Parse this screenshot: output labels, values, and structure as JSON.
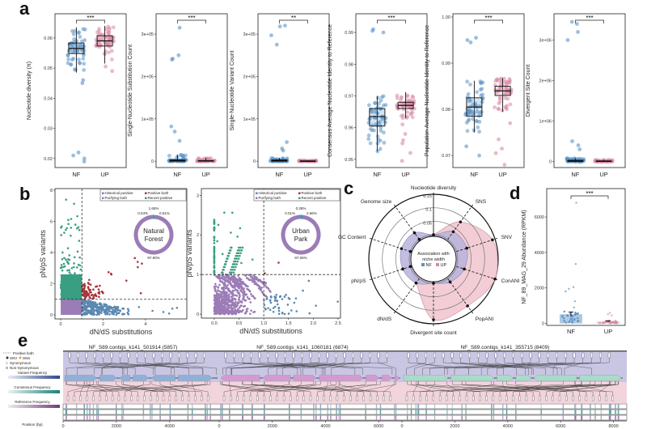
{
  "panel_labels": {
    "a": "a",
    "b": "b",
    "c": "c",
    "d": "d",
    "e": "e"
  },
  "colors": {
    "NF": "#5b93c4",
    "UP": "#d98aa6",
    "historical_positive": "#5b88b0",
    "positive_both": "#a8343a",
    "purifying_both": "#9b7cb6",
    "recent_positive": "#3a9e82",
    "radar_NF_fill": "#b7b3da",
    "radar_UP_fill": "#f2cdd6",
    "contig1": "#8fb0d8",
    "contig2": "#d49ad0",
    "contig3": "#a8dcc8"
  },
  "chart_data": [
    {
      "panel": "a",
      "type": "box",
      "ylabel": "Nucleotide diversity (π)",
      "categories": [
        "NF",
        "UP"
      ],
      "significance": "***",
      "ylim": [
        0.017,
        0.068
      ],
      "yticks": [
        {
          "v": 0.02,
          "label": "0.02"
        },
        {
          "v": 0.03,
          "label": "0.03"
        },
        {
          "v": 0.04,
          "label": "0.04"
        },
        {
          "v": 0.05,
          "label": "0.05"
        },
        {
          "v": 0.06,
          "label": "0.06"
        }
      ],
      "series": [
        {
          "category": "NF",
          "q1": 0.0548,
          "median": 0.0565,
          "q3": 0.0583,
          "whisker_low": 0.0485,
          "whisker_high": 0.0635,
          "outliers": [
            0.021,
            0.019,
            0.02,
            0.022,
            0.045,
            0.046
          ]
        },
        {
          "category": "UP",
          "q1": 0.0573,
          "median": 0.059,
          "q3": 0.0607,
          "whisker_low": 0.0515,
          "whisker_high": 0.064,
          "outliers": [
            0.049,
            0.0505
          ]
        }
      ]
    },
    {
      "panel": "a",
      "type": "box",
      "ylabel": "Single-Nucleotide Substitution Count",
      "categories": [
        "NF",
        "UP"
      ],
      "significance": "***",
      "ylim": [
        -15000,
        348000
      ],
      "yticks": [
        {
          "v": 0,
          "label": "0"
        },
        {
          "v": 100000,
          "label": "1e+05"
        },
        {
          "v": 200000,
          "label": "2e+05"
        },
        {
          "v": 300000,
          "label": "3e+05"
        }
      ],
      "series": [
        {
          "category": "NF",
          "q1": 0,
          "median": 1000,
          "q3": 3000,
          "whisker_low": 0,
          "whisker_high": 15000,
          "outliers": [
            315000,
            250000,
            240000,
            242000,
            82000,
            70000,
            48000
          ]
        },
        {
          "category": "UP",
          "q1": 0,
          "median": 500,
          "q3": 1500,
          "whisker_low": 0,
          "whisker_high": 8000,
          "outliers": []
        }
      ]
    },
    {
      "panel": "a",
      "type": "box",
      "ylabel": "Single-Nucleotide Variant Count",
      "categories": [
        "NF",
        "UP"
      ],
      "significance": "**",
      "ylim": [
        -15000,
        348000
      ],
      "yticks": [
        {
          "v": 0,
          "label": "0"
        },
        {
          "v": 100000,
          "label": "1e+05"
        },
        {
          "v": 200000,
          "label": "2e+05"
        },
        {
          "v": 300000,
          "label": "3e+05"
        }
      ],
      "series": [
        {
          "category": "NF",
          "q1": 0,
          "median": 1000,
          "q3": 3000,
          "whisker_low": 0,
          "whisker_high": 8000,
          "outliers": [
            320000,
            318000,
            297000,
            275000,
            45000,
            30000,
            25000
          ]
        },
        {
          "category": "UP",
          "q1": 0,
          "median": 300,
          "q3": 800,
          "whisker_low": 0,
          "whisker_high": 2000,
          "outliers": []
        }
      ]
    },
    {
      "panel": "a",
      "type": "box",
      "ylabel": "Consensus Average Nucleotide Identity to Reference",
      "categories": [
        "NF",
        "UP"
      ],
      "significance": "***",
      "ylim": [
        0.9474,
        0.9959
      ],
      "yticks": [
        {
          "v": 0.95,
          "label": "0.95"
        },
        {
          "v": 0.96,
          "label": "0.96"
        },
        {
          "v": 0.97,
          "label": "0.97"
        },
        {
          "v": 0.98,
          "label": "0.98"
        },
        {
          "v": 0.99,
          "label": "0.99"
        }
      ],
      "series": [
        {
          "category": "NF",
          "q1": 0.9605,
          "median": 0.9635,
          "q3": 0.966,
          "whisker_low": 0.9525,
          "whisker_high": 0.97,
          "outliers": [
            0.9905,
            0.991,
            0.99
          ]
        },
        {
          "category": "UP",
          "q1": 0.966,
          "median": 0.967,
          "q3": 0.968,
          "whisker_low": 0.963,
          "whisker_high": 0.9712,
          "outliers": [
            0.961,
            0.958,
            0.955,
            0.952,
            0.9495,
            0.956
          ]
        }
      ]
    },
    {
      "panel": "a",
      "type": "box",
      "ylabel": "Population Average Nucleotide Identity to Reference",
      "categories": [
        "NF",
        "UP"
      ],
      "significance": "***",
      "ylim": [
        0.9674,
        1.0007
      ],
      "yticks": [
        {
          "v": 0.97,
          "label": "0.97"
        },
        {
          "v": 0.98,
          "label": "0.98"
        },
        {
          "v": 0.99,
          "label": "0.99"
        },
        {
          "v": 1.0,
          "label": "1.00"
        }
      ],
      "series": [
        {
          "category": "NF",
          "q1": 0.9785,
          "median": 0.9805,
          "q3": 0.9825,
          "whisker_low": 0.975,
          "whisker_high": 0.9862,
          "outliers": [
            0.995,
            0.9955,
            0.9945,
            0.972,
            0.97
          ]
        },
        {
          "category": "UP",
          "q1": 0.983,
          "median": 0.984,
          "q3": 0.985,
          "whisker_low": 0.9795,
          "whisker_high": 0.9868,
          "outliers": [
            0.977,
            0.9735,
            0.9715,
            0.9705,
            0.968
          ]
        }
      ]
    },
    {
      "panel": "a",
      "type": "box",
      "ylabel": "Divergent Site Count",
      "categories": [
        "NF",
        "UP"
      ],
      "significance": "***",
      "ylim": [
        -150000,
        3650000
      ],
      "yticks": [
        {
          "v": 0,
          "label": "0"
        },
        {
          "v": 1000000,
          "label": "1e+06"
        },
        {
          "v": 2000000,
          "label": "2e+06"
        },
        {
          "v": 3000000,
          "label": "3e+06"
        }
      ],
      "series": [
        {
          "category": "NF",
          "q1": 0,
          "median": 10000,
          "q3": 30000,
          "whisker_low": 0,
          "whisker_high": 80000,
          "outliers": [
            3450000,
            3400000,
            3200000,
            3000000,
            500000,
            400000,
            300000
          ]
        },
        {
          "category": "UP",
          "q1": 0,
          "median": 5000,
          "q3": 15000,
          "whisker_low": 0,
          "whisker_high": 40000,
          "outliers": []
        }
      ]
    },
    {
      "panel": "b",
      "type": "scatter",
      "xlabel": "dN/dS substitutions",
      "ylabel": "pN/pS variants",
      "xlim": [
        -0.27,
        5.95
      ],
      "ylim": [
        -0.26,
        8.1
      ],
      "xticks": [
        {
          "v": 0,
          "label": "0"
        },
        {
          "v": 2,
          "label": "2"
        },
        {
          "v": 4,
          "label": "4"
        }
      ],
      "yticks": [
        {
          "v": 0,
          "label": "0"
        },
        {
          "v": 2,
          "label": "2"
        },
        {
          "v": 4,
          "label": "4"
        },
        {
          "v": 6,
          "label": "6"
        },
        {
          "v": 8,
          "label": "8"
        }
      ],
      "thresholds": {
        "x": 1,
        "y": 1
      },
      "legend": [
        "Historical positive",
        "Positive both",
        "Purifying both",
        "Recent positive"
      ],
      "donut": {
        "title": [
          "Natural",
          "Forest"
        ],
        "slices": [
          {
            "category": "Recent positive",
            "percent": 1.65,
            "label": "1.65%"
          },
          {
            "category": "Positive both",
            "percent": 0.04,
            "label": "0.04%"
          },
          {
            "category": "Historical positive",
            "percent": 0.51,
            "label": "0.51%"
          },
          {
            "category": "Purifying both",
            "percent": 97.8,
            "label": "97.80%"
          }
        ]
      }
    },
    {
      "panel": "b",
      "type": "scatter",
      "xlabel": "dN/dS substitutions",
      "ylabel": "pN/pS variants",
      "xlim": [
        -0.26,
        2.55
      ],
      "ylim": [
        -0.1,
        3.17
      ],
      "xticks": [
        {
          "v": 0,
          "label": "0.0"
        },
        {
          "v": 0.5,
          "label": "0.5"
        },
        {
          "v": 1,
          "label": "1.0"
        },
        {
          "v": 1.5,
          "label": "1.5"
        },
        {
          "v": 2,
          "label": "2.0"
        },
        {
          "v": 2.5,
          "label": "2.5"
        }
      ],
      "yticks": [
        {
          "v": 0,
          "label": "0"
        },
        {
          "v": 1,
          "label": "1"
        },
        {
          "v": 2,
          "label": "2"
        },
        {
          "v": 3,
          "label": "3"
        }
      ],
      "thresholds": {
        "x": 1,
        "y": 1
      },
      "legend": [
        "Historical positive",
        "Positive both",
        "Purifying both",
        "Recent positive"
      ],
      "donut": {
        "title": [
          "Urban",
          "Park"
        ],
        "slices": [
          {
            "category": "Positive both",
            "percent": 0.28,
            "label": "0.28%"
          },
          {
            "category": "Recent positive",
            "percent": 0.01,
            "label": "0.01%"
          },
          {
            "category": "Historical positive",
            "percent": 2.66,
            "label": "2.66%"
          },
          {
            "category": "Purifying both",
            "percent": 97.05,
            "label": "97.05%"
          }
        ]
      }
    },
    {
      "panel": "c",
      "type": "radar",
      "axes": [
        "Nucleotide diversity",
        "SNS",
        "SNV",
        "ConANI",
        "PopANI",
        "Divergent site count",
        "dN/dS",
        "pN/pS",
        "GC Content",
        "Genome size"
      ],
      "rings": [
        {
          "v": 0,
          "label": "0"
        },
        {
          "v": 0.05,
          "label": "0.05"
        },
        {
          "v": 0.1,
          "label": "0.1"
        },
        {
          "v": 0.15,
          "label": "0.15"
        }
      ],
      "legend_title": [
        "Association with",
        "niche width"
      ],
      "series": [
        {
          "name": "NF",
          "values": [
            0.0,
            0.035,
            0.04,
            0.03,
            0.015,
            0.0,
            0.02,
            0.03,
            0.035,
            0.03
          ]
        },
        {
          "name": "UP",
          "values": [
            0.0,
            0.08,
            0.14,
            0.15,
            0.125,
            0.135,
            0.02,
            0.0,
            0.0,
            0.0
          ]
        }
      ]
    },
    {
      "panel": "d",
      "type": "bar",
      "ylabel": "NF_89_MAG_29 Abundance (RPKM)",
      "categories": [
        "NF",
        "UP"
      ],
      "values": [
        520,
        110
      ],
      "errors": [
        120,
        40
      ],
      "significance": "***",
      "ylim": [
        -110,
        7600
      ],
      "yticks": [
        {
          "v": 0,
          "label": "0"
        },
        {
          "v": 2000,
          "label": "2000"
        },
        {
          "v": 4000,
          "label": "4000"
        },
        {
          "v": 6000,
          "label": "6000"
        }
      ],
      "outliers": {
        "NF": [
          6800,
          3350,
          2050,
          1950,
          1800,
          1250,
          900
        ],
        "UP": [
          600,
          520,
          450
        ]
      }
    }
  ],
  "genome_track": {
    "contigs": [
      {
        "name": "NF_S89.contigs_k141_501914 (5857)",
        "length": 5857,
        "ticks": [
          "0",
          "2000",
          "4000"
        ],
        "tick_values": [
          0,
          2000,
          4000
        ]
      },
      {
        "name": "NF_S89.contigs_k141_1060181 (6874)",
        "length": 6874,
        "ticks": [
          "0",
          "2000",
          "4000",
          "6000"
        ],
        "tick_values": [
          0,
          2000,
          4000,
          6000
        ]
      },
      {
        "name": "NF_S89.contigs_k141_355715 (8409)",
        "length": 8409,
        "ticks": [
          "0",
          "2000",
          "4000",
          "6000",
          "8000"
        ],
        "tick_values": [
          0,
          2000,
          4000,
          6000,
          8000
        ]
      }
    ],
    "legend": {
      "positive_both": "Positive both",
      "snv": "SNV",
      "sns": "SNS",
      "synonymous": "Synonymous",
      "non_synonymous": "Non-Synonymous",
      "variant_frequency": "Variant Frequency",
      "consensus_frequency": "Consensus Frequency",
      "reference_frequency": "Reference Frequency",
      "position": "Position (bp)"
    }
  }
}
